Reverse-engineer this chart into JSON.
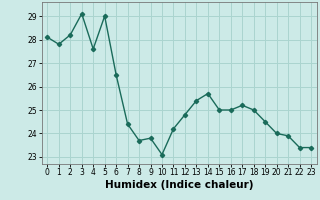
{
  "x": [
    0,
    1,
    2,
    3,
    4,
    5,
    6,
    7,
    8,
    9,
    10,
    11,
    12,
    13,
    14,
    15,
    16,
    17,
    18,
    19,
    20,
    21,
    22,
    23
  ],
  "y": [
    28.1,
    27.8,
    28.2,
    29.1,
    27.6,
    29.0,
    26.5,
    24.4,
    23.7,
    23.8,
    23.1,
    24.2,
    24.8,
    25.4,
    25.7,
    25.0,
    25.0,
    25.2,
    25.0,
    24.5,
    24.0,
    23.9,
    23.4,
    23.4
  ],
  "line_color": "#1a6b5a",
  "marker": "D",
  "marker_size": 2.2,
  "bg_color": "#cceae7",
  "grid_color": "#aad4cf",
  "xlabel": "Humidex (Indice chaleur)",
  "ylim": [
    22.7,
    29.6
  ],
  "xlim": [
    -0.5,
    23.5
  ],
  "yticks": [
    23,
    24,
    25,
    26,
    27,
    28,
    29
  ],
  "xticks": [
    0,
    1,
    2,
    3,
    4,
    5,
    6,
    7,
    8,
    9,
    10,
    11,
    12,
    13,
    14,
    15,
    16,
    17,
    18,
    19,
    20,
    21,
    22,
    23
  ],
  "tick_fontsize": 5.5,
  "xlabel_fontsize": 7.5,
  "line_width": 1.0
}
